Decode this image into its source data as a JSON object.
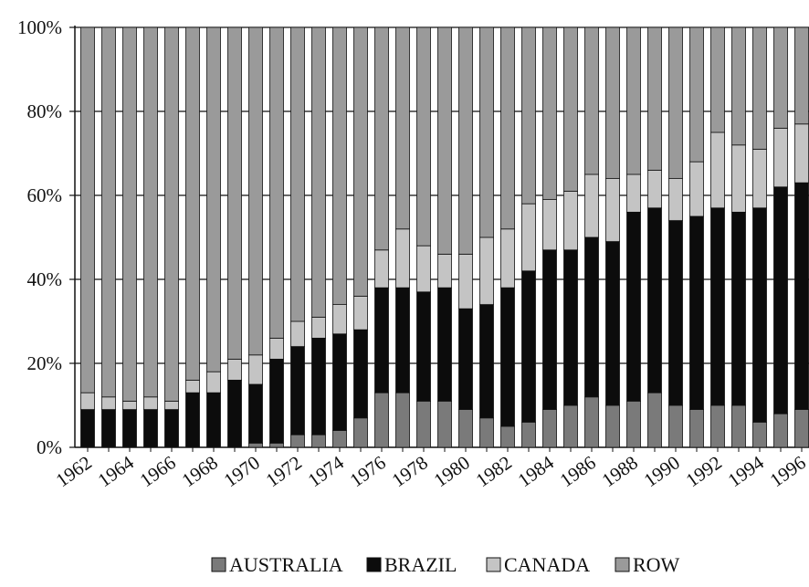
{
  "chart_data": {
    "type": "bar",
    "stacked": true,
    "percent": true,
    "title": "",
    "xlabel": "",
    "ylabel": "",
    "ylim": [
      0,
      100
    ],
    "grid": true,
    "legend_position": "bottom",
    "y_ticks": [
      "0%",
      "20%",
      "40%",
      "60%",
      "80%",
      "100%"
    ],
    "x_tick_labels": [
      "1962",
      "1964",
      "1966",
      "1968",
      "1970",
      "1972",
      "1974",
      "1976",
      "1978",
      "1980",
      "1982",
      "1984",
      "1986",
      "1988",
      "1990",
      "1992",
      "1994",
      "1996"
    ],
    "categories": [
      "1962",
      "1963",
      "1964",
      "1965",
      "1966",
      "1967",
      "1968",
      "1969",
      "1970",
      "1971",
      "1972",
      "1973",
      "1974",
      "1975",
      "1976",
      "1977",
      "1978",
      "1979",
      "1980",
      "1981",
      "1982",
      "1983",
      "1984",
      "1985",
      "1986",
      "1987",
      "1988",
      "1989",
      "1990",
      "1991",
      "1992",
      "1993",
      "1994",
      "1995",
      "1996",
      "1997"
    ],
    "series": [
      {
        "name": "AUSTRALIA",
        "color": "#7a7a7a",
        "values": [
          0,
          0,
          0,
          0,
          0,
          0,
          0,
          0,
          1,
          1,
          3,
          3,
          4,
          7,
          13,
          13,
          11,
          11,
          9,
          7,
          5,
          6,
          9,
          10,
          12,
          10,
          11,
          13,
          10,
          9,
          10,
          10,
          6,
          8,
          9,
          6
        ]
      },
      {
        "name": "BRAZIL",
        "color": "#0c0c0c",
        "values": [
          9,
          9,
          9,
          9,
          9,
          13,
          13,
          16,
          14,
          20,
          21,
          23,
          23,
          21,
          25,
          25,
          26,
          27,
          24,
          27,
          33,
          36,
          38,
          37,
          38,
          39,
          45,
          44,
          44,
          46,
          47,
          46,
          51,
          54,
          54,
          56
        ]
      },
      {
        "name": "CANADA",
        "color": "#c4c4c4",
        "values": [
          4,
          3,
          2,
          3,
          2,
          3,
          5,
          5,
          7,
          5,
          6,
          5,
          7,
          8,
          9,
          14,
          11,
          8,
          13,
          16,
          14,
          16,
          12,
          14,
          15,
          15,
          9,
          9,
          10,
          13,
          18,
          16,
          14,
          14,
          14,
          14
        ]
      },
      {
        "name": "ROW",
        "color": "#9a9a9a",
        "values": [
          87,
          88,
          89,
          88,
          89,
          84,
          82,
          79,
          78,
          74,
          70,
          69,
          66,
          64,
          53,
          48,
          52,
          54,
          54,
          50,
          48,
          42,
          41,
          39,
          35,
          36,
          35,
          34,
          36,
          32,
          25,
          28,
          29,
          24,
          23,
          24
        ]
      }
    ]
  }
}
